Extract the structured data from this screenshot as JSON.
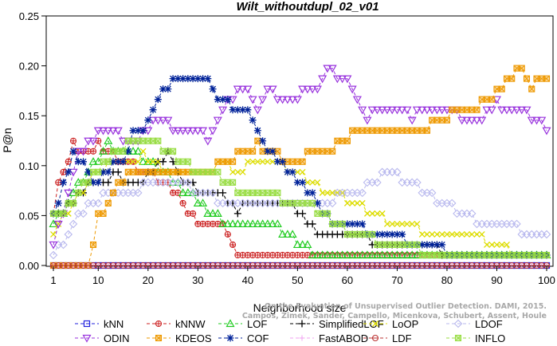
{
  "chart_data": {
    "type": "line",
    "title": "Wilt_withoutdupl_02_v01",
    "xlabel": "Neighborhood size",
    "ylabel": "P@n",
    "xlim": [
      1,
      100
    ],
    "ylim": [
      0,
      0.25
    ],
    "xticks": [
      "1",
      "10",
      "20",
      "30",
      "40",
      "50",
      "60",
      "70",
      "80",
      "90",
      "100"
    ],
    "yticks": [
      "0.00",
      "0.05",
      "0.10",
      "0.15",
      "0.20",
      "0.25"
    ],
    "grid": false,
    "legend_position": "bottom",
    "watermark": [
      "Campos, Zimek, Sander, Campello, Micenkova, Schubert, Assent, Houle",
      "On the Evaluation of Unsupervised Outlier Detection. DAMI, 2015."
    ],
    "series": [
      {
        "name": "kNN",
        "color": "#2222dd",
        "marker": "square",
        "keypoints": [
          [
            1,
            0.001
          ],
          [
            100,
            0.001
          ]
        ]
      },
      {
        "name": "kNNW",
        "color": "#cc2222",
        "marker": "circle-plus",
        "keypoints": [
          [
            1,
            0.05
          ],
          [
            2,
            0.085
          ],
          [
            3,
            0.095
          ],
          [
            5,
            0.12
          ],
          [
            8,
            0.115
          ],
          [
            10,
            0.12
          ],
          [
            13,
            0.11
          ],
          [
            17,
            0.1
          ],
          [
            21,
            0.09
          ],
          [
            24,
            0.085
          ],
          [
            27,
            0.06
          ],
          [
            30,
            0.045
          ],
          [
            33,
            0.04
          ],
          [
            35,
            0.04
          ],
          [
            37,
            0.02
          ],
          [
            39,
            0.01
          ],
          [
            50,
            0.01
          ],
          [
            100,
            0.01
          ]
        ]
      },
      {
        "name": "LOF",
        "color": "#22cc22",
        "marker": "triangle",
        "keypoints": [
          [
            1,
            0.04
          ],
          [
            3,
            0.055
          ],
          [
            6,
            0.08
          ],
          [
            9,
            0.1
          ],
          [
            12,
            0.12
          ],
          [
            15,
            0.115
          ],
          [
            18,
            0.11
          ],
          [
            21,
            0.1
          ],
          [
            24,
            0.095
          ],
          [
            27,
            0.075
          ],
          [
            30,
            0.065
          ],
          [
            33,
            0.05
          ],
          [
            36,
            0.045
          ],
          [
            40,
            0.042
          ],
          [
            45,
            0.04
          ],
          [
            48,
            0.03
          ],
          [
            50,
            0.025
          ],
          [
            53,
            0.015
          ],
          [
            60,
            0.012
          ],
          [
            100,
            0.01
          ]
        ]
      },
      {
        "name": "SimplifiedLOF",
        "color": "#000000",
        "marker": "plus",
        "keypoints": [
          [
            1,
            0.05
          ],
          [
            4,
            0.06
          ],
          [
            7,
            0.075
          ],
          [
            10,
            0.085
          ],
          [
            14,
            0.09
          ],
          [
            17,
            0.08
          ],
          [
            20,
            0.09
          ],
          [
            24,
            0.11
          ],
          [
            27,
            0.085
          ],
          [
            30,
            0.075
          ],
          [
            35,
            0.07
          ],
          [
            38,
            0.055
          ],
          [
            41,
            0.065
          ],
          [
            46,
            0.065
          ],
          [
            49,
            0.06
          ],
          [
            52,
            0.045
          ],
          [
            54,
            0.032
          ],
          [
            62,
            0.032
          ],
          [
            65,
            0.025
          ],
          [
            72,
            0.025
          ],
          [
            75,
            0.022
          ],
          [
            80,
            0.012
          ],
          [
            90,
            0.01
          ],
          [
            100,
            0.01
          ]
        ]
      },
      {
        "name": "LoOP",
        "color": "#dddd00",
        "marker": "x",
        "keypoints": [
          [
            1,
            0.03
          ],
          [
            3,
            0.05
          ],
          [
            6,
            0.07
          ],
          [
            9,
            0.09
          ],
          [
            12,
            0.1
          ],
          [
            16,
            0.105
          ],
          [
            19,
            0.11
          ],
          [
            22,
            0.1
          ],
          [
            26,
            0.09
          ],
          [
            30,
            0.095
          ],
          [
            34,
            0.1
          ],
          [
            38,
            0.098
          ],
          [
            43,
            0.1
          ],
          [
            47,
            0.1
          ],
          [
            50,
            0.095
          ],
          [
            53,
            0.08
          ],
          [
            58,
            0.072
          ],
          [
            62,
            0.062
          ],
          [
            66,
            0.05
          ],
          [
            70,
            0.042
          ],
          [
            75,
            0.035
          ],
          [
            80,
            0.03
          ],
          [
            84,
            0.03
          ],
          [
            88,
            0.025
          ],
          [
            90,
            0.02
          ],
          [
            93,
            0.015
          ],
          [
            100,
            0.01
          ]
        ]
      },
      {
        "name": "LDOF",
        "color": "#b8b8ee",
        "marker": "diamond",
        "keypoints": [
          [
            1,
            0.01
          ],
          [
            3,
            0.025
          ],
          [
            6,
            0.05
          ],
          [
            9,
            0.065
          ],
          [
            12,
            0.07
          ],
          [
            16,
            0.075
          ],
          [
            20,
            0.08
          ],
          [
            24,
            0.085
          ],
          [
            28,
            0.08
          ],
          [
            32,
            0.07
          ],
          [
            36,
            0.065
          ],
          [
            42,
            0.065
          ],
          [
            48,
            0.06
          ],
          [
            54,
            0.065
          ],
          [
            60,
            0.07
          ],
          [
            64,
            0.08
          ],
          [
            68,
            0.095
          ],
          [
            70,
            0.09
          ],
          [
            73,
            0.08
          ],
          [
            76,
            0.075
          ],
          [
            80,
            0.06
          ],
          [
            84,
            0.05
          ],
          [
            88,
            0.04
          ],
          [
            92,
            0.04
          ],
          [
            95,
            0.035
          ],
          [
            100,
            0.032
          ]
        ]
      },
      {
        "name": "ODIN",
        "color": "#9933dd",
        "marker": "triangle-down",
        "keypoints": [
          [
            1,
            0.025
          ],
          [
            3,
            0.055
          ],
          [
            6,
            0.11
          ],
          [
            8,
            0.12
          ],
          [
            10,
            0.13
          ],
          [
            13,
            0.135
          ],
          [
            15,
            0.125
          ],
          [
            18,
            0.12
          ],
          [
            20,
            0.14
          ],
          [
            23,
            0.15
          ],
          [
            26,
            0.135
          ],
          [
            30,
            0.14
          ],
          [
            32,
            0.125
          ],
          [
            35,
            0.155
          ],
          [
            38,
            0.175
          ],
          [
            40,
            0.18
          ],
          [
            42,
            0.16
          ],
          [
            44,
            0.175
          ],
          [
            47,
            0.165
          ],
          [
            50,
            0.17
          ],
          [
            53,
            0.175
          ],
          [
            56,
            0.195
          ],
          [
            58,
            0.192
          ],
          [
            60,
            0.185
          ],
          [
            62,
            0.165
          ],
          [
            64,
            0.15
          ],
          [
            67,
            0.16
          ],
          [
            70,
            0.155
          ],
          [
            73,
            0.15
          ],
          [
            76,
            0.16
          ],
          [
            80,
            0.155
          ],
          [
            83,
            0.15
          ],
          [
            86,
            0.145
          ],
          [
            88,
            0.155
          ],
          [
            90,
            0.165
          ],
          [
            92,
            0.155
          ],
          [
            95,
            0.16
          ],
          [
            98,
            0.145
          ],
          [
            100,
            0.14
          ]
        ]
      },
      {
        "name": "KDEOS",
        "color": "#ee9900",
        "marker": "square-x",
        "keypoints": [
          [
            1,
            0.001
          ],
          [
            8,
            0.001
          ],
          [
            10,
            0.05
          ],
          [
            12,
            0.06
          ],
          [
            14,
            0.08
          ],
          [
            16,
            0.09
          ],
          [
            18,
            0.095
          ],
          [
            22,
            0.095
          ],
          [
            26,
            0.09
          ],
          [
            30,
            0.095
          ],
          [
            34,
            0.1
          ],
          [
            38,
            0.11
          ],
          [
            42,
            0.12
          ],
          [
            45,
            0.115
          ],
          [
            48,
            0.105
          ],
          [
            50,
            0.1
          ],
          [
            52,
            0.11
          ],
          [
            55,
            0.115
          ],
          [
            58,
            0.12
          ],
          [
            61,
            0.13
          ],
          [
            64,
            0.14
          ],
          [
            68,
            0.135
          ],
          [
            71,
            0.14
          ],
          [
            76,
            0.14
          ],
          [
            80,
            0.15
          ],
          [
            83,
            0.155
          ],
          [
            86,
            0.16
          ],
          [
            89,
            0.17
          ],
          [
            91,
            0.18
          ],
          [
            93,
            0.185
          ],
          [
            95,
            0.2
          ],
          [
            97,
            0.18
          ],
          [
            100,
            0.19
          ]
        ]
      },
      {
        "name": "COF",
        "color": "#002299",
        "marker": "star",
        "keypoints": [
          [
            1,
            0.05
          ],
          [
            3,
            0.085
          ],
          [
            5,
            0.11
          ],
          [
            7,
            0.1
          ],
          [
            9,
            0.085
          ],
          [
            11,
            0.09
          ],
          [
            13,
            0.1
          ],
          [
            15,
            0.105
          ],
          [
            17,
            0.13
          ],
          [
            19,
            0.14
          ],
          [
            21,
            0.16
          ],
          [
            23,
            0.175
          ],
          [
            25,
            0.185
          ],
          [
            28,
            0.185
          ],
          [
            30,
            0.19
          ],
          [
            32,
            0.19
          ],
          [
            33,
            0.175
          ],
          [
            35,
            0.165
          ],
          [
            37,
            0.16
          ],
          [
            39,
            0.16
          ],
          [
            41,
            0.145
          ],
          [
            43,
            0.125
          ],
          [
            45,
            0.11
          ],
          [
            47,
            0.1
          ],
          [
            49,
            0.09
          ],
          [
            51,
            0.085
          ],
          [
            53,
            0.07
          ],
          [
            55,
            0.055
          ],
          [
            57,
            0.045
          ],
          [
            62,
            0.045
          ],
          [
            64,
            0.035
          ],
          [
            68,
            0.03
          ],
          [
            72,
            0.025
          ],
          [
            76,
            0.02
          ],
          [
            80,
            0.015
          ],
          [
            85,
            0.012
          ],
          [
            90,
            0.01
          ],
          [
            100,
            0.01
          ]
        ]
      },
      {
        "name": "FastABOD",
        "color": "#f0a0f0",
        "marker": "plus-small",
        "keypoints": [
          [
            1,
            0.0
          ],
          [
            100,
            0.0
          ]
        ]
      },
      {
        "name": "LDF",
        "color": "#bb3333",
        "marker": "circle-bar",
        "keypoints": [
          [
            1,
            0.0
          ],
          [
            100,
            0.0
          ]
        ]
      },
      {
        "name": "INFLO",
        "color": "#99dd44",
        "marker": "square-x",
        "keypoints": [
          [
            1,
            0.05
          ],
          [
            4,
            0.06
          ],
          [
            7,
            0.08
          ],
          [
            10,
            0.095
          ],
          [
            13,
            0.11
          ],
          [
            16,
            0.12
          ],
          [
            19,
            0.125
          ],
          [
            22,
            0.12
          ],
          [
            25,
            0.11
          ],
          [
            28,
            0.1
          ],
          [
            31,
            0.095
          ],
          [
            34,
            0.09
          ],
          [
            38,
            0.075
          ],
          [
            42,
            0.07
          ],
          [
            46,
            0.068
          ],
          [
            50,
            0.065
          ],
          [
            54,
            0.055
          ],
          [
            58,
            0.04
          ],
          [
            62,
            0.03
          ],
          [
            66,
            0.025
          ],
          [
            70,
            0.02
          ],
          [
            75,
            0.015
          ],
          [
            80,
            0.012
          ],
          [
            90,
            0.01
          ],
          [
            100,
            0.01
          ]
        ]
      }
    ]
  }
}
